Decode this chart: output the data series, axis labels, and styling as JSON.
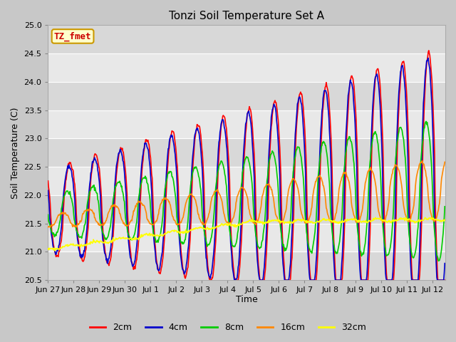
{
  "title": "Tonzi Soil Temperature Set A",
  "xlabel": "Time",
  "ylabel": "Soil Temperature (C)",
  "annotation": "TZ_fmet",
  "annotation_color": "#cc0000",
  "annotation_bg": "#ffffcc",
  "annotation_border": "#cc9900",
  "ylim": [
    20.5,
    25.0
  ],
  "yticks": [
    20.5,
    21.0,
    21.5,
    22.0,
    22.5,
    23.0,
    23.5,
    24.0,
    24.5,
    25.0
  ],
  "xtick_labels": [
    "Jun 27",
    "Jun 28",
    "Jun 29",
    "Jun 30",
    "Jul 1",
    "Jul 2",
    "Jul 3",
    "Jul 4",
    "Jul 5",
    "Jul 6",
    "Jul 7",
    "Jul 8",
    "Jul 9",
    "Jul 10",
    "Jul 11",
    "Jul 12"
  ],
  "line_colors": {
    "2cm": "#ff0000",
    "4cm": "#0000cc",
    "8cm": "#00cc00",
    "16cm": "#ff8800",
    "32cm": "#ffff00"
  },
  "legend_entries": [
    "2cm",
    "4cm",
    "8cm",
    "16cm",
    "32cm"
  ],
  "fig_bg": "#c8c8c8",
  "plot_bg_light": "#e8e8e8",
  "plot_bg_dark": "#d8d8d8",
  "grid_color": "#ffffff"
}
